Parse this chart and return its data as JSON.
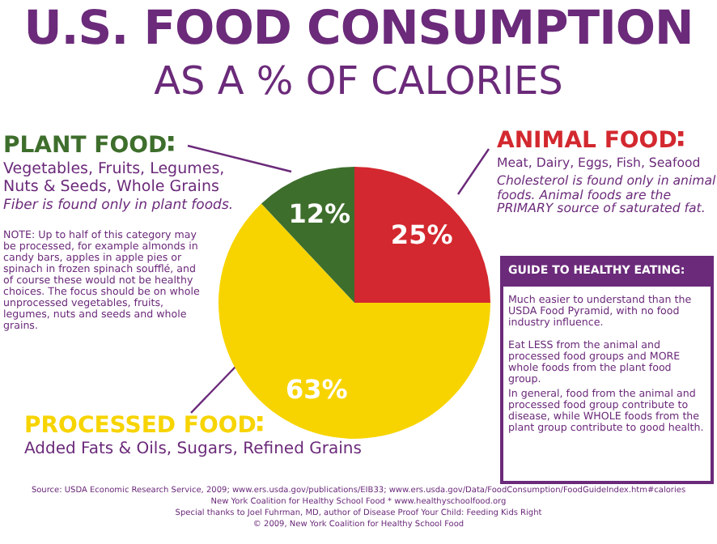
{
  "chart_data": {
    "type": "pie",
    "title": "U.S. FOOD CONSUMPTION",
    "subtitle": "AS A % OF CALORIES",
    "categories": [
      "ANIMAL FOOD",
      "PROCESSED FOOD",
      "PLANT FOOD"
    ],
    "values": [
      25,
      63,
      12
    ],
    "colors": [
      "#d3282f",
      "#f7d400",
      "#3e6e2c"
    ],
    "value_labels": [
      "25%",
      "63%",
      "12%"
    ],
    "legend": "top",
    "annotations": [
      "Vegetables, Fruits, Legumes, Nuts & Seeds, Whole Grains",
      "Fiber is found only in plant foods.",
      "NOTE: Up to half of this category may be processed, for example almonds in candy bars, apples in apple pies or spinach in frozen spinach soufflé, and of course these would not be healthy choices. The focus should be on whole unprocessed vegetables, fruits, legumes, nuts and seeds and whole grains.",
      "Meat, Dairy, Eggs, Fish, Seafood",
      "Cholesterol is found only in animal foods. Animal foods are the PRIMARY source of saturated fat.",
      "Added Fats & Oils, Sugars, Refined Grains",
      "GUIDE TO HEALTHY EATING:",
      "Much easier to understand than the USDA Food Pyramid, with no food industry influence.",
      "Eat LESS from the animal and processed food groups and MORE whole foods from the plant food group.",
      "In general, food from the animal and processed food group contribute to disease, while WHOLE foods from the plant group contribute to good health.",
      "Source: USDA Economic Research Service, 2009; www.ers.usda.gov/publications/EIB33; www.ers.usda.gov/Data/FoodConsumption/FoodGuideIndex.htm#calories",
      "New York Coalition for Healthy School Food * www.healthyschoolfood.org",
      "Special thanks to Joel Fuhrman, MD, author of Disease Proof Your Child: Feeding Kids Right",
      "© 2009, New York Coalition for Healthy School Food"
    ]
  }
}
